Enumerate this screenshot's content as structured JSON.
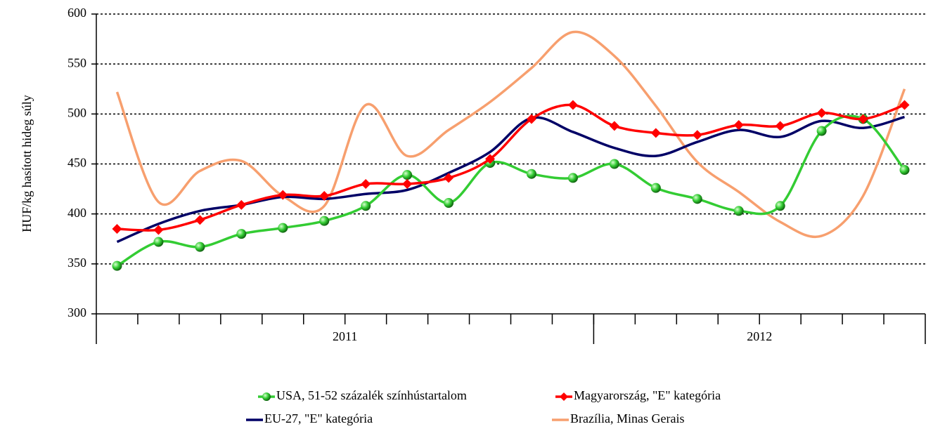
{
  "chart_data": {
    "type": "line",
    "y_label": "HUF/kg hasított hideg súly",
    "categories": [
      null,
      null,
      null,
      null,
      null,
      null,
      null,
      null,
      null,
      null,
      null,
      null,
      null,
      null,
      null,
      null,
      null,
      null,
      null,
      null
    ],
    "year_groups": [
      {
        "label": "2011",
        "count": 12
      },
      {
        "label": "2012",
        "count": 8
      }
    ],
    "ylim": [
      300,
      600
    ],
    "yticks": [
      300,
      350,
      400,
      450,
      500,
      550,
      600
    ],
    "grid": true,
    "legend": "bottom",
    "series": [
      {
        "name": "USA, 51-52 százalék színhústartalom",
        "color": "#33cc33",
        "marker": "circle",
        "values": [
          348,
          372,
          367,
          380,
          386,
          393,
          408,
          439,
          411,
          451,
          440,
          436,
          450,
          426,
          415,
          403,
          408,
          483,
          495,
          444
        ]
      },
      {
        "name": "Magyarország, \"E\" kategória",
        "color": "#ff0000",
        "marker": "diamond",
        "values": [
          385,
          384,
          394,
          409,
          419,
          418,
          430,
          430,
          436,
          455,
          495,
          509,
          488,
          481,
          479,
          489,
          488,
          501,
          495,
          509
        ]
      },
      {
        "name": "EU-27, \"E\" kategória",
        "color": "#000066",
        "marker": "none",
        "values": [
          372,
          390,
          403,
          409,
          417,
          415,
          420,
          424,
          441,
          462,
          496,
          482,
          466,
          458,
          472,
          484,
          477,
          493,
          486,
          497
        ]
      },
      {
        "name": "Brazília, Minas Gerais",
        "color": "#f79f6e",
        "marker": "none",
        "values": [
          522,
          412,
          443,
          453,
          418,
          408,
          509,
          458,
          484,
          512,
          546,
          582,
          558,
          508,
          452,
          422,
          392,
          378,
          418,
          525
        ]
      }
    ]
  }
}
